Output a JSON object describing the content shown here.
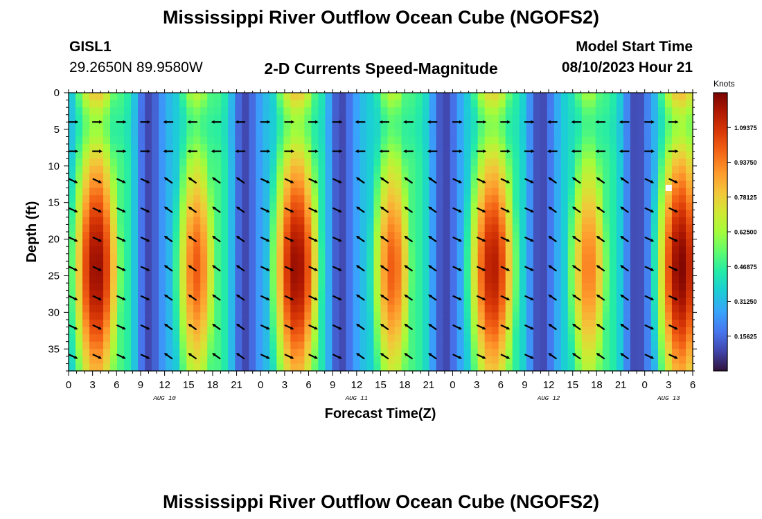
{
  "page": {
    "title": "Mississippi River Outflow Ocean Cube (NGOFS2)",
    "station_id": "GISL1",
    "coords": "29.2650N  89.9580W",
    "subtitle": "2-D Currents Speed-Magnitude",
    "model_start_label": "Model Start Time",
    "model_start_value": "08/10/2023 Hour 21",
    "bottom_title": "Mississippi River Outflow Ocean Cube (NGOFS2)"
  },
  "chart_data": {
    "type": "heatmap",
    "title": "2-D Currents Speed-Magnitude",
    "xlabel": "Forecast Time(Z)",
    "ylabel": "Depth (ft)",
    "x_hours_since_start": [
      0,
      78
    ],
    "x_tick_labels": [
      "0",
      "3",
      "6",
      "9",
      "12",
      "15",
      "18",
      "21",
      "0",
      "3",
      "6",
      "9",
      "12",
      "15",
      "18",
      "21",
      "0",
      "3",
      "6",
      "9",
      "12",
      "15",
      "18",
      "21",
      "0",
      "3",
      "6"
    ],
    "date_labels": [
      {
        "label": "AUG 10",
        "hour": 12
      },
      {
        "label": "AUG 11",
        "hour": 36
      },
      {
        "label": "AUG 12",
        "hour": 60
      },
      {
        "label": "AUG 13",
        "hour": 75
      }
    ],
    "y_range": [
      0,
      38
    ],
    "y_ticks": [
      0,
      5,
      10,
      15,
      20,
      25,
      30,
      35
    ],
    "y_tick_labels": [
      "0",
      "5",
      "10",
      "15",
      "20",
      "25",
      "30",
      "35"
    ],
    "colorbar": {
      "unit": "Knots",
      "range": [
        0.0,
        1.25
      ],
      "ticks": [
        0.15625,
        0.3125,
        0.46875,
        0.625,
        0.78125,
        0.9375,
        1.09375
      ],
      "tick_labels": [
        "0.15625",
        "0.31250",
        "0.46875",
        "0.62500",
        "0.78125",
        "0.93750",
        "1.09375"
      ]
    },
    "speed_peaks_knots": [
      {
        "hour": 3.5,
        "depth_center_ft": 24,
        "speed": 1.15,
        "direction": "ebb"
      },
      {
        "hour": 16.0,
        "depth_center_ft": 24,
        "speed": 0.95,
        "direction": "flood"
      },
      {
        "hour": 28.5,
        "depth_center_ft": 24,
        "speed": 1.15,
        "direction": "ebb"
      },
      {
        "hour": 40.5,
        "depth_center_ft": 24,
        "speed": 0.95,
        "direction": "flood"
      },
      {
        "hour": 53.0,
        "depth_center_ft": 24,
        "speed": 1.1,
        "direction": "ebb"
      },
      {
        "hour": 65.0,
        "depth_center_ft": 24,
        "speed": 0.9,
        "direction": "flood"
      },
      {
        "hour": 76.5,
        "depth_center_ft": 24,
        "speed": 1.18,
        "direction": "ebb"
      }
    ],
    "slack_minima_hours": [
      10,
      22,
      34,
      47,
      59,
      71
    ],
    "arrow_hours": [
      0,
      3,
      6,
      9,
      12,
      15,
      18,
      21,
      24,
      27,
      30,
      33,
      36,
      39,
      42,
      45,
      48,
      51,
      54,
      57,
      60,
      63,
      66,
      69,
      72,
      75
    ],
    "arrow_depths_ft": [
      4,
      8,
      12,
      16,
      20,
      24,
      28,
      32,
      36
    ],
    "marker": {
      "hour": 75.0,
      "depth_ft": 13
    }
  }
}
